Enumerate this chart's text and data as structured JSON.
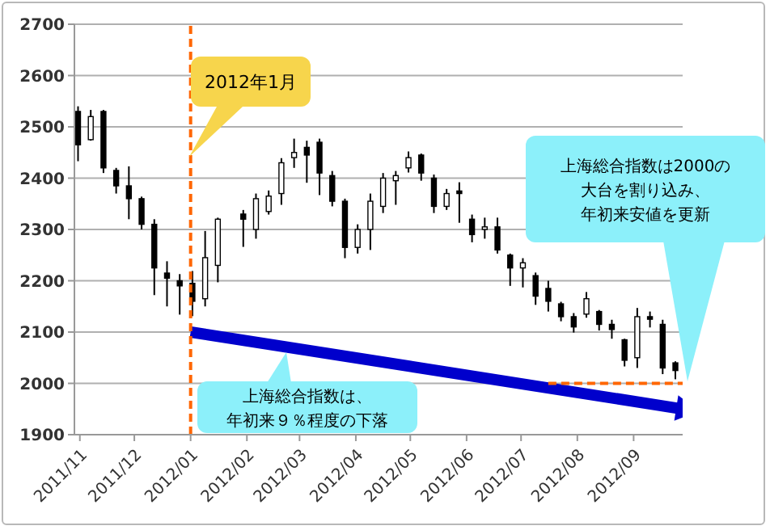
{
  "chart_data": {
    "type": "candlestick",
    "x": [
      "2011-10-31",
      "2011-11-07",
      "2011-11-14",
      "2011-11-21",
      "2011-11-28",
      "2011-12-05",
      "2011-12-12",
      "2011-12-19",
      "2011-12-26",
      "2012-01-02",
      "2012-01-09",
      "2012-01-16",
      "2012-01-30",
      "2012-02-06",
      "2012-02-13",
      "2012-02-20",
      "2012-02-27",
      "2012-03-05",
      "2012-03-12",
      "2012-03-19",
      "2012-03-26",
      "2012-04-02",
      "2012-04-09",
      "2012-04-16",
      "2012-04-23",
      "2012-04-30",
      "2012-05-07",
      "2012-05-14",
      "2012-05-21",
      "2012-05-28",
      "2012-06-04",
      "2012-06-11",
      "2012-06-18",
      "2012-06-25",
      "2012-07-02",
      "2012-07-09",
      "2012-07-16",
      "2012-07-23",
      "2012-07-30",
      "2012-08-06",
      "2012-08-13",
      "2012-08-20",
      "2012-08-27",
      "2012-09-03",
      "2012-09-10",
      "2012-09-17",
      "2012-09-24"
    ],
    "series": [
      {
        "color": "#000000",
        "ohlc": [
          [
            2530,
            2540,
            2433,
            2465
          ],
          [
            2475,
            2533,
            2473,
            2520
          ],
          [
            2530,
            2533,
            2410,
            2420
          ],
          [
            2415,
            2420,
            2370,
            2385
          ],
          [
            2385,
            2423,
            2320,
            2360
          ],
          [
            2360,
            2364,
            2300,
            2310
          ],
          [
            2310,
            2320,
            2172,
            2225
          ],
          [
            2215,
            2238,
            2150,
            2205
          ],
          [
            2200,
            2213,
            2134,
            2190
          ],
          [
            2195,
            2219,
            2131,
            2160
          ],
          [
            2165,
            2297,
            2150,
            2245
          ],
          [
            2230,
            2323,
            2197,
            2320
          ],
          [
            2330,
            2338,
            2266,
            2320
          ],
          [
            2300,
            2370,
            2282,
            2360
          ],
          [
            2335,
            2376,
            2329,
            2365
          ],
          [
            2370,
            2439,
            2348,
            2430
          ],
          [
            2440,
            2477,
            2420,
            2450
          ],
          [
            2460,
            2473,
            2391,
            2445
          ],
          [
            2470,
            2477,
            2367,
            2410
          ],
          [
            2405,
            2414,
            2345,
            2355
          ],
          [
            2355,
            2360,
            2244,
            2265
          ],
          [
            2265,
            2310,
            2253,
            2300
          ],
          [
            2300,
            2370,
            2260,
            2355
          ],
          [
            2345,
            2410,
            2332,
            2400
          ],
          [
            2395,
            2414,
            2348,
            2405
          ],
          [
            2420,
            2452,
            2411,
            2440
          ],
          [
            2445,
            2448,
            2395,
            2410
          ],
          [
            2400,
            2407,
            2332,
            2345
          ],
          [
            2345,
            2379,
            2338,
            2370
          ],
          [
            2375,
            2392,
            2313,
            2370
          ],
          [
            2320,
            2329,
            2275,
            2290
          ],
          [
            2300,
            2323,
            2282,
            2305
          ],
          [
            2305,
            2323,
            2253,
            2260
          ],
          [
            2250,
            2253,
            2190,
            2225
          ],
          [
            2225,
            2244,
            2187,
            2235
          ],
          [
            2210,
            2216,
            2153,
            2170
          ],
          [
            2185,
            2200,
            2140,
            2160
          ],
          [
            2155,
            2159,
            2121,
            2130
          ],
          [
            2130,
            2137,
            2099,
            2110
          ],
          [
            2135,
            2178,
            2128,
            2165
          ],
          [
            2140,
            2143,
            2103,
            2115
          ],
          [
            2115,
            2124,
            2087,
            2105
          ],
          [
            2085,
            2087,
            2033,
            2045
          ],
          [
            2050,
            2147,
            2030,
            2130
          ],
          [
            2130,
            2140,
            2109,
            2125
          ],
          [
            2115,
            2124,
            2018,
            2030
          ],
          [
            2040,
            2043,
            2008,
            2025
          ]
        ]
      },
      {
        "type": "line",
        "color": "#0000cc",
        "x": [
          "2012-01-01",
          "2012-09-28"
        ],
        "values": [
          2100,
          1950
        ]
      },
      {
        "type": "line",
        "color": "#ff6600",
        "line_style": "dashed",
        "x": [
          "2012-07-16",
          "2012-09-28"
        ],
        "values": [
          2000,
          2000
        ]
      }
    ],
    "xlim": [
      "2011-10-29",
      "2012-09-28"
    ],
    "xticks": [
      {
        "value": "2011-11-01",
        "label": "2011/11"
      },
      {
        "value": "2011-12-01",
        "label": "2011/12"
      },
      {
        "value": "2012-01-01",
        "label": "2012/01"
      },
      {
        "value": "2012-02-01",
        "label": "2012/02"
      },
      {
        "value": "2012-03-01",
        "label": "2012/03"
      },
      {
        "value": "2012-04-01",
        "label": "2012/04"
      },
      {
        "value": "2012-05-01",
        "label": "2012/05"
      },
      {
        "value": "2012-06-01",
        "label": "2012/06"
      },
      {
        "value": "2012-07-01",
        "label": "2012/07"
      },
      {
        "value": "2012-08-01",
        "label": "2012/08"
      },
      {
        "value": "2012-09-01",
        "label": "2012/09"
      }
    ],
    "ylim": [
      1900,
      2700
    ],
    "yticks": [
      1900,
      2000,
      2100,
      2200,
      2300,
      2400,
      2500,
      2600,
      2700
    ],
    "grid": "y",
    "ref_lines": [
      {
        "axis": "x",
        "value": "2012-01-01",
        "color": "#ff6600",
        "line_style": "dashed"
      }
    ],
    "annotations": [
      "2012年1月",
      "上海総合指数は、年初来９％程度の下落",
      "上海総合指数は2000の大台を割り込み、年初来安値を更新"
    ]
  }
}
